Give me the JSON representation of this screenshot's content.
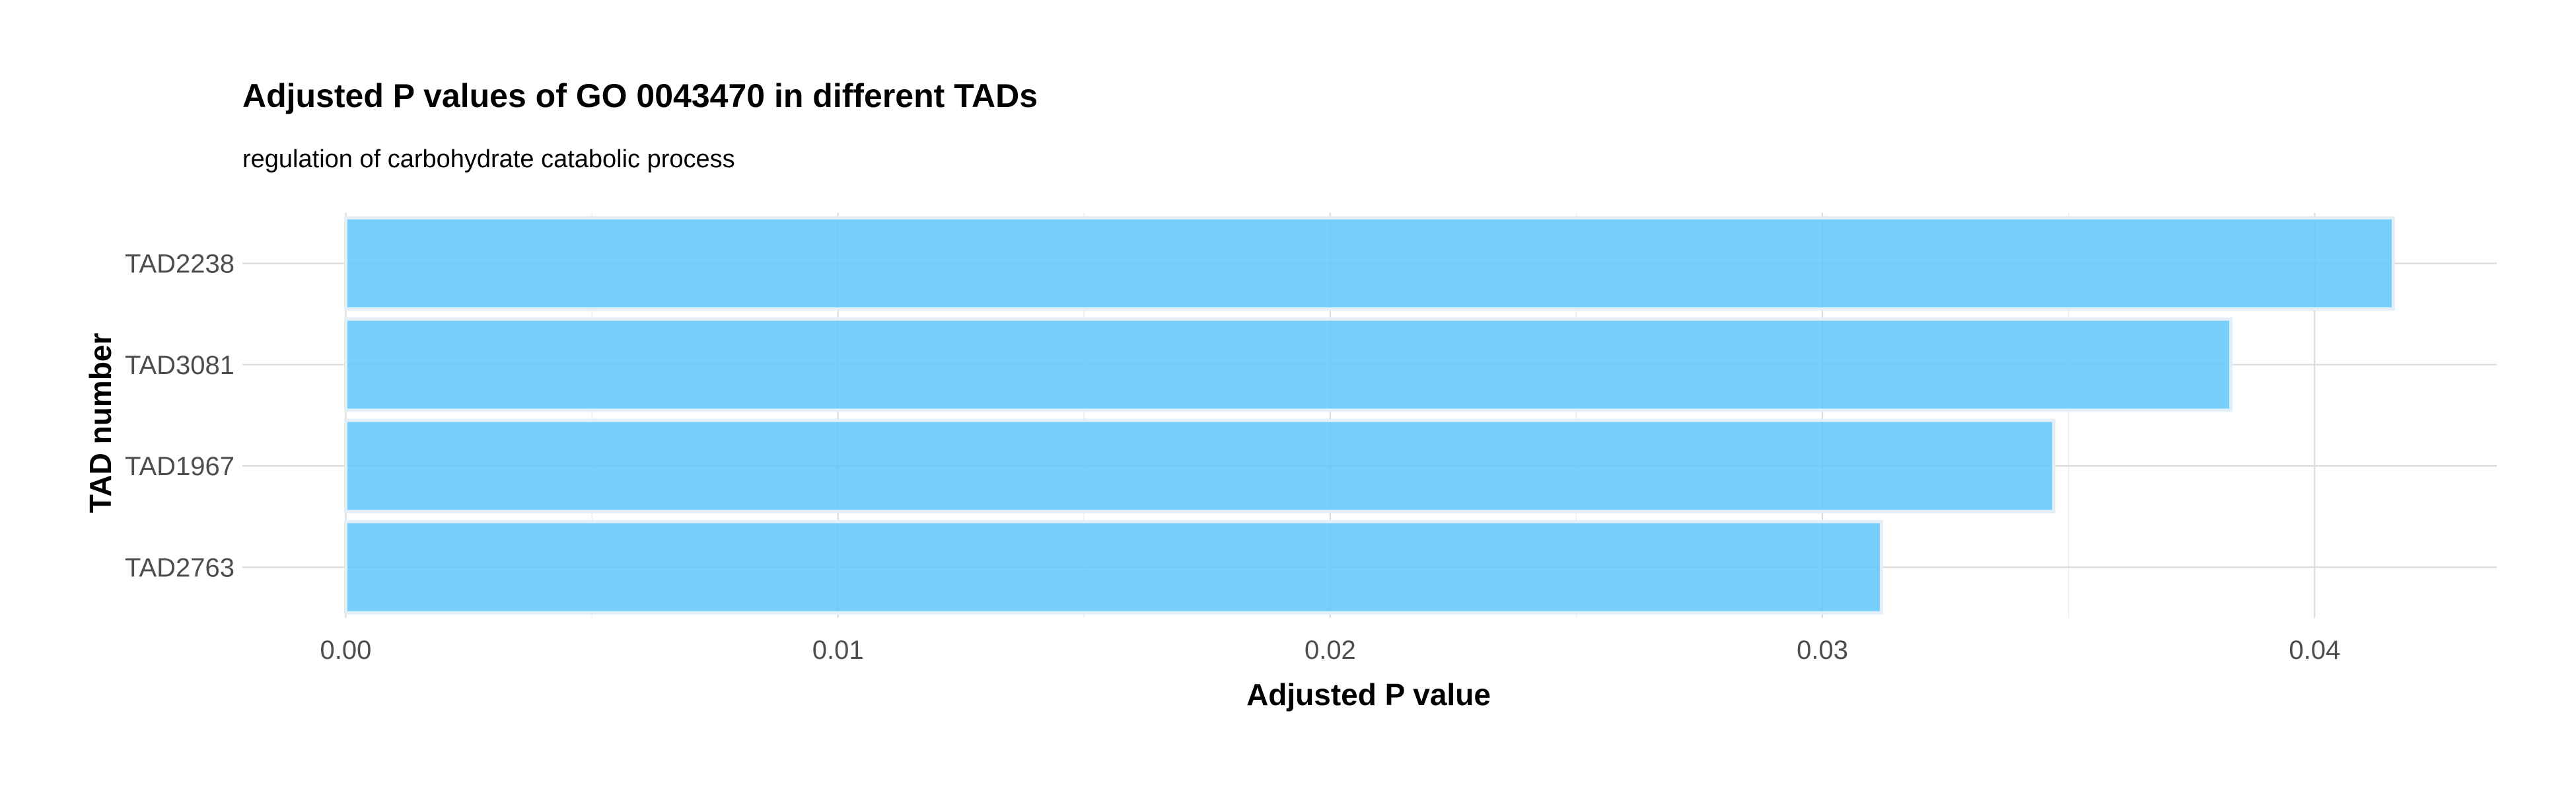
{
  "chart_data": {
    "type": "bar",
    "orientation": "horizontal",
    "title": "Adjusted P values of GO 0043470 in different TADs",
    "subtitle": "regulation of carbohydrate catabolic process",
    "xlabel": "Adjusted P value",
    "ylabel": "TAD number",
    "categories": [
      "TAD2238",
      "TAD3081",
      "TAD1967",
      "TAD2763"
    ],
    "values": [
      0.0416,
      0.0383,
      0.0347,
      0.0312
    ],
    "xlim": [
      -0.0021,
      0.0437
    ],
    "xticks": [
      0.0,
      0.01,
      0.02,
      0.03,
      0.04
    ],
    "xtick_labels": [
      "0.00",
      "0.01",
      "0.02",
      "0.03",
      "0.04"
    ],
    "grid": true,
    "legend": "none",
    "colors": {
      "bar_fill": "#5fc8fb",
      "bar_outline": "#e3eef7",
      "grid": "#dcdcdc"
    }
  }
}
